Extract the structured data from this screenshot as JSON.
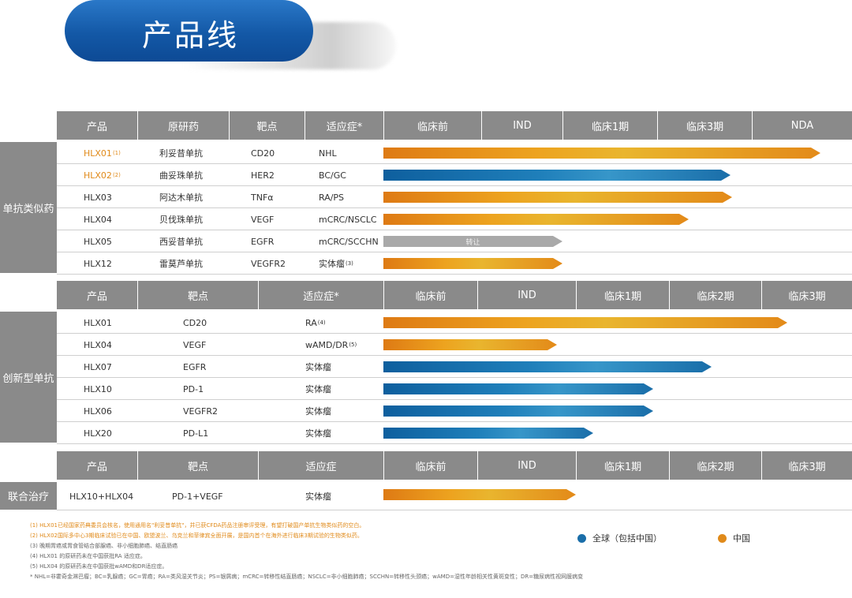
{
  "title": "产品线",
  "colors": {
    "header_gray": "#8a8a8a",
    "orange": "#e08a1a",
    "blue": "#1a6ea9",
    "gray_bar": "#a9a9a9"
  },
  "biosimilar": {
    "section_label": "单抗类似药",
    "headers": [
      "产品",
      "原研药",
      "靶点",
      "适应症*",
      "临床前",
      "IND",
      "临床1期",
      "临床3期",
      "NDA"
    ],
    "rows": [
      {
        "product": "HLX01",
        "sup": "(1)",
        "reference": "利妥昔单抗",
        "target": "CD20",
        "indication": "NHL",
        "bar": "orange",
        "bar_label": "",
        "stage": "NDA",
        "highlight": true
      },
      {
        "product": "HLX02",
        "sup": "(2)",
        "reference": "曲妥珠单抗",
        "target": "HER2",
        "indication": "BC/GC",
        "bar": "blue",
        "bar_label": "",
        "stage": "临床3期",
        "highlight": true
      },
      {
        "product": "HLX03",
        "sup": "",
        "reference": "阿达木单抗",
        "target": "TNFα",
        "indication": "RA/PS",
        "bar": "orange",
        "bar_label": "",
        "stage": "临床3期",
        "highlight": false
      },
      {
        "product": "HLX04",
        "sup": "",
        "reference": "贝伐珠单抗",
        "target": "VEGF",
        "indication": "mCRC/NSCLC",
        "bar": "orange",
        "bar_label": "",
        "stage": "临床3期",
        "highlight": false
      },
      {
        "product": "HLX05",
        "sup": "",
        "reference": "西妥昔单抗",
        "target": "EGFR",
        "indication": "mCRC/SCCHN",
        "bar": "gray",
        "bar_label": "转让",
        "stage": "临床1期",
        "highlight": false
      },
      {
        "product": "HLX12",
        "sup": "",
        "reference": "雷莫芦单抗",
        "target": "VEGFR2",
        "indication": "实体瘤",
        "ind_sup": "(3)",
        "bar": "orange",
        "bar_label": "",
        "stage": "临床1期",
        "highlight": false
      }
    ]
  },
  "innovative": {
    "section_label": "创新型单抗",
    "headers": [
      "产品",
      "靶点",
      "适应症*",
      "临床前",
      "IND",
      "临床1期",
      "临床2期",
      "临床3期"
    ],
    "rows": [
      {
        "product": "HLX01",
        "target": "CD20",
        "indication": "RA",
        "ind_sup": "(4)",
        "bar": "orange",
        "stage": "临床3期"
      },
      {
        "product": "HLX04",
        "target": "VEGF",
        "indication": "wAMD/DR",
        "ind_sup": "(5)",
        "bar": "orange",
        "stage": "IND"
      },
      {
        "product": "HLX07",
        "target": "EGFR",
        "indication": "实体瘤",
        "ind_sup": "",
        "bar": "blue",
        "stage": "临床2期"
      },
      {
        "product": "HLX10",
        "target": "PD-1",
        "indication": "实体瘤",
        "ind_sup": "",
        "bar": "blue",
        "stage": "临床2期"
      },
      {
        "product": "HLX06",
        "target": "VEGFR2",
        "indication": "实体瘤",
        "ind_sup": "",
        "bar": "blue",
        "stage": "临床2期"
      },
      {
        "product": "HLX20",
        "target": "PD-L1",
        "indication": "实体瘤",
        "ind_sup": "",
        "bar": "blue",
        "stage": "临床1期"
      }
    ]
  },
  "combination": {
    "section_label": "联合治疗",
    "headers": [
      "产品",
      "靶点",
      "适应症",
      "临床前",
      "IND",
      "临床1期",
      "临床2期",
      "临床3期"
    ],
    "rows": [
      {
        "product": "HLX10+HLX04",
        "target": "PD-1+VEGF",
        "indication": "实体瘤",
        "bar": "orange",
        "stage": "临床1期"
      }
    ]
  },
  "notes": [
    {
      "text": "(1) HLX01已经国家药典委员会核名，使用通用名\"利妥昔单抗\"，并已获CFDA药品注册审评受理，有望打破国产单抗生物类似药的空白。",
      "orange": true
    },
    {
      "text": "(2) HLX02国际多中心3期临床试验已在中国、欧盟波兰、乌克兰和菲律宾全面开展，是国内首个在海外进行临床3期试验的生物类似药。",
      "orange": true
    },
    {
      "text": "(3) 晚期胃癌或胃食管结合部腺癌、非小细胞肺癌、结直肠癌",
      "orange": false
    },
    {
      "text": "(4) HLX01 的原研药未在中国获批RA 适应症。",
      "orange": false
    },
    {
      "text": "(5) HLX04 的原研药未在中国获批wAMD和DR适应症。",
      "orange": false
    },
    {
      "text": "*   NHL=非霍奇金淋巴瘤；BC=乳腺癌；GC=胃癌；RA=类风湿关节炎；PS=银屑病；mCRC=转移性结直肠癌；NSCLC=非小细胞肺癌；SCCHN=转移性头颈癌；wAMD=湿性年龄相关性黄斑变性；DR=糖尿病性视网膜病变",
      "orange": false
    }
  ],
  "legend": [
    {
      "label": "全球（包括中国）",
      "color": "#1a6ea9"
    },
    {
      "label": "中国",
      "color": "#e08a1a"
    }
  ]
}
